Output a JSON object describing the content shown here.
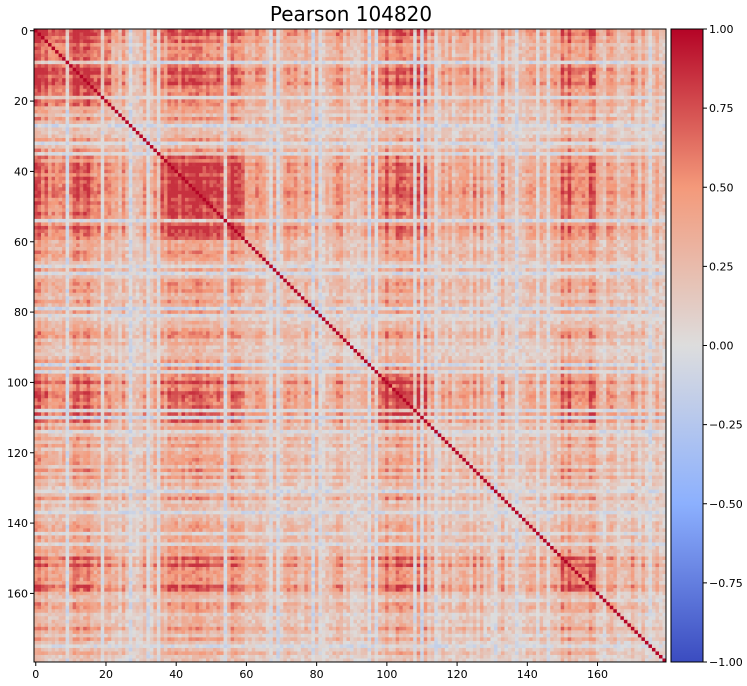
{
  "chart_data": {
    "type": "heatmap",
    "title": "Pearson 104820",
    "size": 180,
    "colormap": "coolwarm",
    "vmin": -1.0,
    "vmax": 1.0,
    "x_ticks": [
      0,
      20,
      40,
      60,
      80,
      100,
      120,
      140,
      160
    ],
    "y_ticks": [
      0,
      20,
      40,
      60,
      80,
      100,
      120,
      140,
      160
    ],
    "colorbar_ticks": [
      "1.00",
      "0.75",
      "0.50",
      "0.25",
      "0.00",
      "−0.25",
      "−0.50",
      "−0.75",
      "−1.00"
    ],
    "colorbar_values": [
      1.0,
      0.75,
      0.5,
      0.25,
      0.0,
      -0.25,
      -0.5,
      -0.75,
      -1.0
    ],
    "diagonal_value": 1.0,
    "block_regions": [
      {
        "from": 35,
        "to": 60,
        "mean": 0.45
      },
      {
        "from": 97,
        "to": 112,
        "mean": 0.5
      },
      {
        "from": 150,
        "to": 160,
        "mean": 0.45
      },
      {
        "from": 0,
        "to": 22,
        "mean": 0.35
      }
    ],
    "background_mean": 0.18
  }
}
